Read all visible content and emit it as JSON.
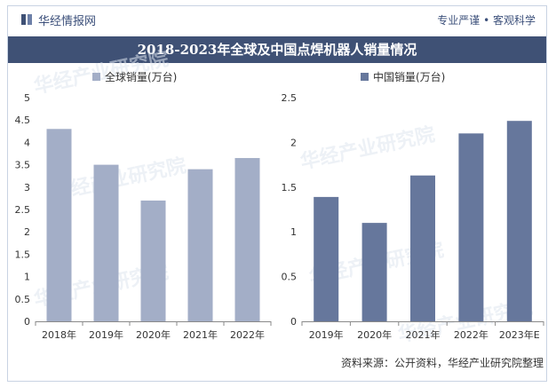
{
  "header": {
    "brand": "华经情报网",
    "slogan": "专业严谨 • 客观科学"
  },
  "title": "2018-2023年全球及中国点焊机器人销量情况",
  "source": "资料来源：公开资料，华经产业研究院整理",
  "watermark": "华经产业研究院",
  "colors": {
    "global_bar": "#a3aec7",
    "china_bar": "#66779c",
    "title_bg": "#3f5175"
  },
  "chart_data": [
    {
      "type": "bar",
      "legend": "全球销量(万台)",
      "categories": [
        "2018年",
        "2019年",
        "2020年",
        "2021年",
        "2022年"
      ],
      "values": [
        4.3,
        3.5,
        2.7,
        3.4,
        3.65
      ],
      "ylim": [
        0,
        5
      ],
      "yticks": [
        "0",
        "0.5",
        "1",
        "1.5",
        "2",
        "2.5",
        "3",
        "3.5",
        "4",
        "4.5",
        "5"
      ],
      "grid": false
    },
    {
      "type": "bar",
      "legend": "中国销量(万台)",
      "categories": [
        "2019年",
        "2020年",
        "2021年",
        "2022年",
        "2023年E"
      ],
      "values": [
        1.39,
        1.1,
        1.63,
        2.1,
        2.24
      ],
      "ylim": [
        0,
        2.5
      ],
      "yticks": [
        "0",
        "0.5",
        "1",
        "1.5",
        "2",
        "2.5"
      ],
      "grid": false
    }
  ]
}
